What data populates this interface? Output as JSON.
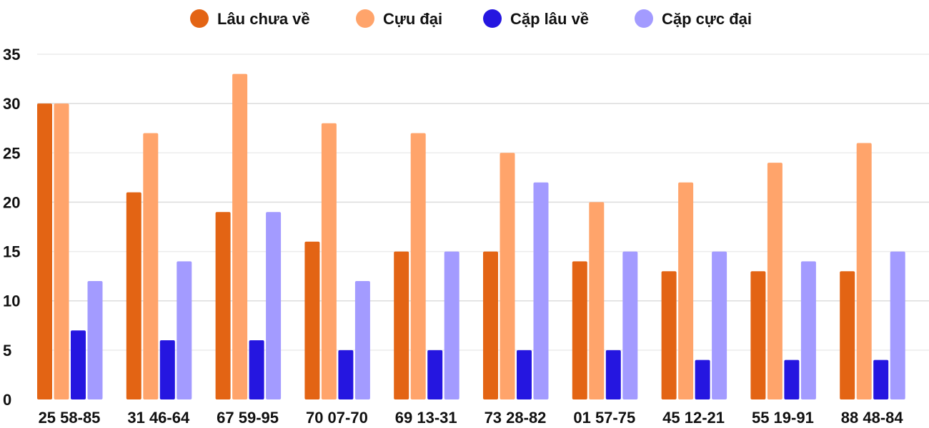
{
  "chart_data": {
    "type": "bar",
    "title": "",
    "xlabel": "",
    "ylabel": "",
    "ylim": [
      0,
      35
    ],
    "yticks": [
      0,
      5,
      10,
      15,
      20,
      25,
      30,
      35
    ],
    "grid": true,
    "legend_position": "top",
    "categories": [
      "25 58-85",
      "31 46-64",
      "67 59-95",
      "70 07-70",
      "69 13-31",
      "73 28-82",
      "01 57-75",
      "45 12-21",
      "55 19-91",
      "88 48-84"
    ],
    "series": [
      {
        "name": "Lâu chưa về",
        "color": "#E36414",
        "values": [
          30,
          21,
          19,
          16,
          15,
          15,
          14,
          13,
          13,
          13
        ]
      },
      {
        "name": "Cựu đại",
        "color": "#FFA46B",
        "values": [
          30,
          27,
          33,
          28,
          27,
          25,
          20,
          22,
          24,
          26
        ]
      },
      {
        "name": "Cặp lâu về",
        "color": "#2516E0",
        "values": [
          7,
          6,
          6,
          5,
          5,
          5,
          5,
          4,
          4,
          4
        ]
      },
      {
        "name": "Cặp cực đại",
        "color": "#A39BFF",
        "values": [
          12,
          14,
          19,
          12,
          15,
          22,
          15,
          15,
          14,
          15
        ]
      }
    ]
  }
}
